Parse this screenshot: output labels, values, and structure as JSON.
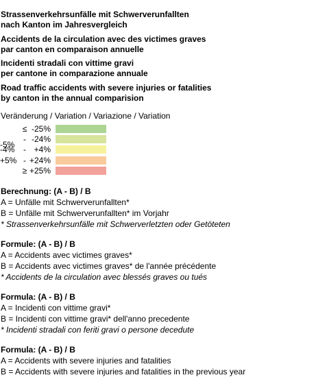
{
  "titles": [
    [
      "Strassenverkehrsunfälle mit Schwerverunfallten",
      "nach Kanton im Jahresvergleich"
    ],
    [
      "Accidents de la circulation avec des victimes graves",
      "par canton en comparaison annuelle"
    ],
    [
      "Incidenti stradali con vittime gravi",
      "per cantone in comparazione annuale"
    ],
    [
      "Road traffic accidents with severe injuries or fatalities",
      "by canton in the annual comparision"
    ]
  ],
  "legend": {
    "heading": "Veränderung / Variation / Variazione / Variation",
    "rows": [
      {
        "lo": "",
        "sep": "≤",
        "hi": "-25%",
        "color": "#acd594"
      },
      {
        "lo": "",
        "sep": "-",
        "hi": "-24%",
        "color": "#d6e49c"
      },
      {
        "lo": "-5%",
        "sep": "",
        "hi": "",
        "color": null
      },
      {
        "lo": "-4%",
        "sep": "-",
        "hi": "+4%",
        "color": "#f6f29c"
      },
      {
        "lo": "+5%",
        "sep": "-",
        "hi": "+24%",
        "color": "#f9cb9c"
      },
      {
        "lo": "",
        "sep": "≥",
        "hi": "+25%",
        "color": "#f2a29b"
      }
    ]
  },
  "sections": [
    {
      "head": "Berechnung: (A - B) / B",
      "lines": [
        "A = Unfälle mit Schwerverunfallten*",
        "B = Unfälle mit Schwerverunfallten* im Vorjahr"
      ],
      "note": "* Strassenverkehrsunfälle mit Schwerverletzten oder Getöteten"
    },
    {
      "head": "Formule: (A - B) / B",
      "lines": [
        "A = Accidents avec victimes graves*",
        "B = Accidents avec victimes graves* de l'année précédente"
      ],
      "note": "* Accidents de la circulation avec blessés graves ou tués"
    },
    {
      "head": "Formula: (A - B) / B",
      "lines": [
        "A = Incidenti con vittime gravi*",
        "B = Incidenti con vittime gravi* dell'anno precedente"
      ],
      "note": "* Incidenti stradali con feriti gravi o persone decedute"
    },
    {
      "head": "Formula: (A - B) / B",
      "lines": [
        "A = Accidents with severe injuries and fatalities",
        "B = Accidents with severe injuries and fatalities in the previous year"
      ],
      "note": ""
    }
  ]
}
